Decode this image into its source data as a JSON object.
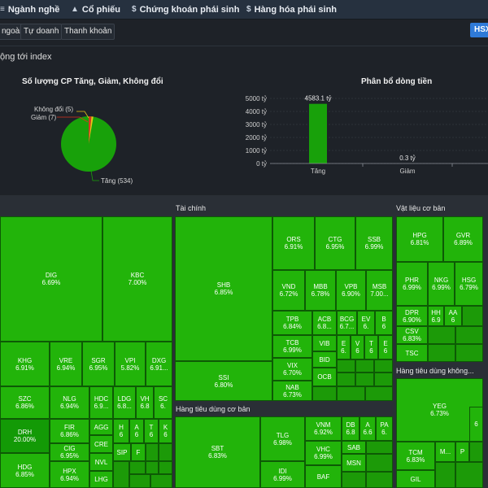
{
  "nav": [
    {
      "icon": "≡",
      "label": "Ngành nghề"
    },
    {
      "icon": "▲",
      "label": "Cổ phiếu"
    },
    {
      "icon": "$",
      "label": "Chứng khoán phái sinh"
    },
    {
      "icon": "$",
      "label": "Hàng hóa phái sinh"
    }
  ],
  "subtabs": [
    "ngoài",
    "Tự doanh",
    "Thanh khoản"
  ],
  "exchange_button": "HSX",
  "section_title": "ộng tới index",
  "pie_chart": {
    "title": "Số lượng CP Tăng, Giảm, Không đổi",
    "labels": {
      "unchanged": "Không đổi (5)",
      "down": "Giảm (7)",
      "up": "Tăng (534)"
    },
    "colors": {
      "up": "#18a10a",
      "down": "#d8341f",
      "unchanged": "#e8c21a"
    }
  },
  "bar_chart": {
    "title": "Phân bổ dòng tiền"
  },
  "chart_data": [
    {
      "type": "pie",
      "title": "Số lượng CP Tăng, Giảm, Không đổi",
      "categories": [
        "Tăng",
        "Giảm",
        "Không đổi"
      ],
      "values": [
        534,
        7,
        5
      ]
    },
    {
      "type": "bar",
      "title": "Phân bổ dòng tiền",
      "categories": [
        "Tăng",
        "Giảm",
        ""
      ],
      "values": [
        4583.1,
        0.3,
        0
      ],
      "value_labels": [
        "4583.1 tỷ",
        "0.3 tỷ",
        ""
      ],
      "yticks": [
        "0 tỷ",
        "1000 tỷ",
        "2000 tỷ",
        "3000 tỷ",
        "4000 tỷ",
        "5000 tỷ"
      ],
      "ylim": [
        0,
        5000
      ],
      "colors": [
        "#18a10a",
        "#d8341f",
        "#d8341f"
      ]
    }
  ],
  "heatmap": {
    "sectors": [
      "Tài chính",
      "Vật liệu cơ bản",
      "Hàng tiêu dùng không...",
      "Hàng tiêu dùng cơ bản"
    ],
    "cells": {
      "DIG": {
        "sym": "DIG",
        "pct": "6.69%"
      },
      "KBC": {
        "sym": "KBC",
        "pct": "7.00%"
      },
      "KHG": {
        "sym": "KHG",
        "pct": "6.91%"
      },
      "VRE": {
        "sym": "VRE",
        "pct": "6.94%"
      },
      "SGR": {
        "sym": "SGR",
        "pct": "6.95%"
      },
      "VPI": {
        "sym": "VPI",
        "pct": "5.82%"
      },
      "DXG": {
        "sym": "DXG",
        "pct": "6.91..."
      },
      "SZC": {
        "sym": "SZC",
        "pct": "6.86%"
      },
      "NLG": {
        "sym": "NLG",
        "pct": "6.94%"
      },
      "HDC": {
        "sym": "HDC",
        "pct": "6.9..."
      },
      "LDG": {
        "sym": "LDG",
        "pct": "6.8..."
      },
      "VH": {
        "sym": "VH",
        "pct": "6.8"
      },
      "SC": {
        "sym": "SC",
        "pct": "6."
      },
      "DRH": {
        "sym": "DRH",
        "pct": "20.00%"
      },
      "FIR": {
        "sym": "FIR",
        "pct": "6.86%"
      },
      "AGG": {
        "sym": "AGG",
        "pct": ""
      },
      "H1": {
        "sym": "H",
        "pct": "6"
      },
      "A1": {
        "sym": "A",
        "pct": "6"
      },
      "T1": {
        "sym": "T",
        "pct": "6"
      },
      "K1": {
        "sym": "K",
        "pct": "6"
      },
      "CIG": {
        "sym": "CIG",
        "pct": "6.95%"
      },
      "CRE": {
        "sym": "CRE",
        "pct": ""
      },
      "SIP": {
        "sym": "SIP",
        "pct": ""
      },
      "F1": {
        "sym": "F",
        "pct": ""
      },
      "NVL": {
        "sym": "NVL",
        "pct": ""
      },
      "HDG": {
        "sym": "HDG",
        "pct": "6.85%"
      },
      "HPX": {
        "sym": "HPX",
        "pct": "6.94%"
      },
      "LHG": {
        "sym": "LHG",
        "pct": ""
      },
      "SHB": {
        "sym": "SHB",
        "pct": "6.85%"
      },
      "ORS": {
        "sym": "ORS",
        "pct": "6.91%"
      },
      "CTG": {
        "sym": "CTG",
        "pct": "6.95%"
      },
      "SSB": {
        "sym": "SSB",
        "pct": "6.99%"
      },
      "VND": {
        "sym": "VND",
        "pct": "6.72%"
      },
      "MBB": {
        "sym": "MBB",
        "pct": "6.78%"
      },
      "VPB": {
        "sym": "VPB",
        "pct": "6.90%"
      },
      "MSB": {
        "sym": "MSB",
        "pct": "7.00..."
      },
      "TPB": {
        "sym": "TPB",
        "pct": "6.84%"
      },
      "ACB": {
        "sym": "ACB",
        "pct": "6.8..."
      },
      "BCG": {
        "sym": "BCG",
        "pct": "6.7..."
      },
      "EV": {
        "sym": "EV",
        "pct": "6."
      },
      "B1": {
        "sym": "B",
        "pct": "6"
      },
      "TCB": {
        "sym": "TCB",
        "pct": "6.99%"
      },
      "VIB": {
        "sym": "VIB",
        "pct": ""
      },
      "E1": {
        "sym": "E",
        "pct": "6."
      },
      "V1": {
        "sym": "V",
        "pct": "6"
      },
      "T2": {
        "sym": "T",
        "pct": "6"
      },
      "E2": {
        "sym": "E",
        "pct": "6"
      },
      "SSI": {
        "sym": "SSI",
        "pct": "6.80%"
      },
      "VIX": {
        "sym": "VIX",
        "pct": "6.70%"
      },
      "BID": {
        "sym": "BID",
        "pct": ""
      },
      "NAB": {
        "sym": "NAB",
        "pct": "6.73%"
      },
      "OCB": {
        "sym": "OCB",
        "pct": ""
      },
      "HPG": {
        "sym": "HPG",
        "pct": "6.81%"
      },
      "GVR": {
        "sym": "GVR",
        "pct": "6.89%"
      },
      "PHR": {
        "sym": "PHR",
        "pct": "6.99%"
      },
      "NKG": {
        "sym": "NKG",
        "pct": "6.99%"
      },
      "HSG": {
        "sym": "HSG",
        "pct": "6.79%"
      },
      "DPR": {
        "sym": "DPR",
        "pct": "6.90%"
      },
      "HH": {
        "sym": "HH",
        "pct": "6.9"
      },
      "AA": {
        "sym": "AA",
        "pct": "6"
      },
      "CSV": {
        "sym": "CSV",
        "pct": "6.83%"
      },
      "TSC": {
        "sym": "TSC",
        "pct": ""
      },
      "SBT": {
        "sym": "SBT",
        "pct": "6.83%"
      },
      "TLG": {
        "sym": "TLG",
        "pct": "6.98%"
      },
      "VNM": {
        "sym": "VNM",
        "pct": "6.92%"
      },
      "DB": {
        "sym": "DB",
        "pct": "6.8"
      },
      "A2": {
        "sym": "A",
        "pct": "6.6"
      },
      "PA": {
        "sym": "PA",
        "pct": "6."
      },
      "SAB": {
        "sym": "SAB",
        "pct": ""
      },
      "VHC": {
        "sym": "VHC",
        "pct": "6.99%"
      },
      "MSN": {
        "sym": "MSN",
        "pct": ""
      },
      "IDI": {
        "sym": "IDI",
        "pct": "6.99%"
      },
      "BAF": {
        "sym": "BAF",
        "pct": ""
      },
      "YEG": {
        "sym": "YEG",
        "pct": "6.73%"
      },
      "TCM": {
        "sym": "TCM",
        "pct": "6.83%"
      },
      "M1": {
        "sym": "M...",
        "pct": ""
      },
      "P1": {
        "sym": "P",
        "pct": ""
      },
      "GIL": {
        "sym": "GIL",
        "pct": ""
      },
      "R1": {
        "sym": "6",
        "pct": ""
      }
    }
  }
}
